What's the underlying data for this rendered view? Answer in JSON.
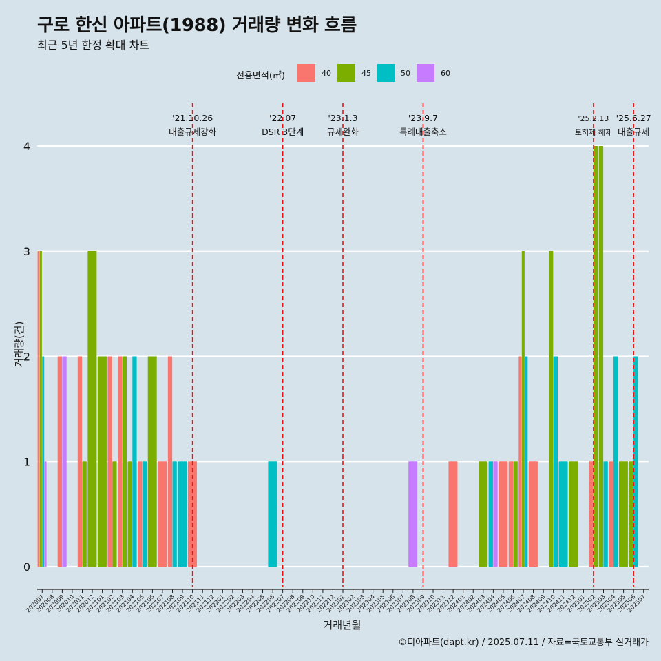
{
  "title": "구로 한신 아파트(1988) 거래량 변화 흐름",
  "subtitle": "최근 5년 한정 확대 차트",
  "source": "©디아파트(dapt.kr) / 2025.07.11 / 자료=국토교통부 실거래가",
  "chart_data": {
    "type": "bar",
    "xlabel": "거래년월",
    "ylabel": "거래량(건)",
    "ylim": [
      0,
      4
    ],
    "yticks": [
      0,
      1,
      2,
      3,
      4
    ],
    "legend_title": "전용면적(㎡)",
    "legend_position": "top",
    "grid": "horizontal",
    "series": [
      {
        "name": "40",
        "color": "#F8766D"
      },
      {
        "name": "45",
        "color": "#7CAE00"
      },
      {
        "name": "50",
        "color": "#00BFC4"
      },
      {
        "name": "60",
        "color": "#C77CFF"
      }
    ],
    "categories": [
      "202007",
      "202008",
      "202009",
      "202010",
      "202011",
      "202012",
      "202101",
      "202102",
      "202103",
      "202104",
      "202105",
      "202106",
      "202107",
      "202108",
      "202109",
      "202110",
      "202111",
      "202112",
      "202201",
      "202202",
      "202203",
      "202204",
      "202205",
      "202206",
      "202207",
      "202208",
      "202209",
      "202210",
      "202211",
      "202212",
      "202301",
      "202302",
      "202303",
      "202304",
      "202305",
      "202306",
      "202307",
      "202308",
      "202309",
      "202310",
      "202311",
      "202312",
      "202401",
      "202402",
      "202403",
      "202404",
      "202405",
      "202406",
      "202407",
      "202408",
      "202409",
      "202410",
      "202411",
      "202412",
      "202501",
      "202502",
      "202503",
      "202504",
      "202505",
      "202506",
      "202507"
    ],
    "bars": [
      {
        "x": "202007",
        "series": "40",
        "value": 3
      },
      {
        "x": "202007",
        "series": "45",
        "value": 3
      },
      {
        "x": "202007",
        "series": "50",
        "value": 2
      },
      {
        "x": "202007",
        "series": "60",
        "value": 1
      },
      {
        "x": "202009",
        "series": "40",
        "value": 2
      },
      {
        "x": "202009",
        "series": "60",
        "value": 2
      },
      {
        "x": "202011",
        "series": "40",
        "value": 2
      },
      {
        "x": "202011",
        "series": "45",
        "value": 1
      },
      {
        "x": "202012",
        "series": "45",
        "value": 3
      },
      {
        "x": "202101",
        "series": "45",
        "value": 2
      },
      {
        "x": "202102",
        "series": "40",
        "value": 2
      },
      {
        "x": "202102",
        "series": "45",
        "value": 1
      },
      {
        "x": "202103",
        "series": "40",
        "value": 2
      },
      {
        "x": "202103",
        "series": "45",
        "value": 2
      },
      {
        "x": "202104",
        "series": "45",
        "value": 1
      },
      {
        "x": "202104",
        "series": "50",
        "value": 2
      },
      {
        "x": "202105",
        "series": "40",
        "value": 1
      },
      {
        "x": "202105",
        "series": "50",
        "value": 1
      },
      {
        "x": "202106",
        "series": "45",
        "value": 2
      },
      {
        "x": "202107",
        "series": "40",
        "value": 1
      },
      {
        "x": "202108",
        "series": "40",
        "value": 2
      },
      {
        "x": "202108",
        "series": "50",
        "value": 1
      },
      {
        "x": "202109",
        "series": "50",
        "value": 1
      },
      {
        "x": "202110",
        "series": "40",
        "value": 1
      },
      {
        "x": "202206",
        "series": "50",
        "value": 1
      },
      {
        "x": "202308",
        "series": "60",
        "value": 1
      },
      {
        "x": "202312",
        "series": "40",
        "value": 1
      },
      {
        "x": "202403",
        "series": "45",
        "value": 1
      },
      {
        "x": "202404",
        "series": "50",
        "value": 1
      },
      {
        "x": "202404",
        "series": "60",
        "value": 1
      },
      {
        "x": "202405",
        "series": "40",
        "value": 1
      },
      {
        "x": "202406",
        "series": "40",
        "value": 1
      },
      {
        "x": "202406",
        "series": "45",
        "value": 1
      },
      {
        "x": "202407",
        "series": "40",
        "value": 2
      },
      {
        "x": "202407",
        "series": "45",
        "value": 3
      },
      {
        "x": "202407",
        "series": "50",
        "value": 2
      },
      {
        "x": "202408",
        "series": "40",
        "value": 1
      },
      {
        "x": "202410",
        "series": "45",
        "value": 3
      },
      {
        "x": "202410",
        "series": "50",
        "value": 2
      },
      {
        "x": "202411",
        "series": "50",
        "value": 1
      },
      {
        "x": "202412",
        "series": "45",
        "value": 1
      },
      {
        "x": "202502",
        "series": "40",
        "value": 1
      },
      {
        "x": "202502",
        "series": "45",
        "value": 4
      },
      {
        "x": "202503",
        "series": "45",
        "value": 4
      },
      {
        "x": "202503",
        "series": "50",
        "value": 1
      },
      {
        "x": "202504",
        "series": "40",
        "value": 1
      },
      {
        "x": "202504",
        "series": "50",
        "value": 2
      },
      {
        "x": "202505",
        "series": "45",
        "value": 1
      },
      {
        "x": "202506",
        "series": "45",
        "value": 1
      },
      {
        "x": "202506",
        "series": "50",
        "value": 2
      }
    ],
    "annotations": [
      {
        "x": "202110",
        "date": "'21.10.26",
        "text": "대출규제강화",
        "size": "normal"
      },
      {
        "x": "202207",
        "date": "'22.07",
        "text": "DSR 3단계",
        "size": "normal"
      },
      {
        "x": "202301",
        "date": "'23.1.3",
        "text": "규제완화",
        "size": "normal"
      },
      {
        "x": "202309",
        "date": "'23.9.7",
        "text": "특례대출축소",
        "size": "normal"
      },
      {
        "x": "202502",
        "date": "'25.2.13",
        "text": "토허제 해제",
        "size": "small"
      },
      {
        "x": "202506",
        "date": "'25.6.27",
        "text": "대출규제",
        "size": "normal"
      }
    ]
  }
}
